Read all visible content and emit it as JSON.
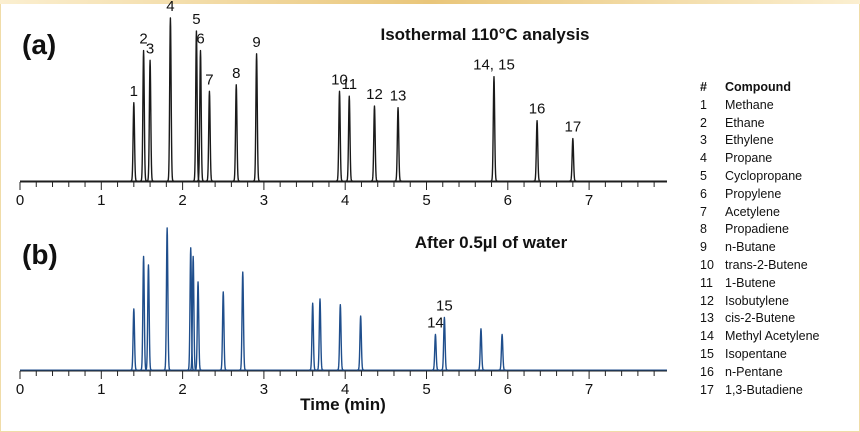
{
  "chart_data": [
    {
      "type": "line",
      "panel_label": "(a)",
      "title": "Isothermal 110°C analysis",
      "xlabel": "",
      "xlim": [
        0,
        8.0
      ],
      "xticks": [
        "0",
        "1",
        "2",
        "3",
        "4",
        "5",
        "6",
        "7"
      ],
      "line_color": "#1a1a1a",
      "peaks": [
        {
          "label": "1",
          "x": 1.4,
          "height": 0.48
        },
        {
          "label": "2",
          "x": 1.52,
          "height": 0.8
        },
        {
          "label": "3",
          "x": 1.6,
          "height": 0.74
        },
        {
          "label": "4",
          "x": 1.85,
          "height": 1.0
        },
        {
          "label": "5",
          "x": 2.17,
          "height": 0.92
        },
        {
          "label": "6",
          "x": 2.22,
          "height": 0.8
        },
        {
          "label": "7",
          "x": 2.33,
          "height": 0.55
        },
        {
          "label": "8",
          "x": 2.66,
          "height": 0.59
        },
        {
          "label": "9",
          "x": 2.91,
          "height": 0.78
        },
        {
          "label": "10",
          "x": 3.93,
          "height": 0.55
        },
        {
          "label": "11",
          "x": 4.05,
          "height": 0.52
        },
        {
          "label": "12",
          "x": 4.36,
          "height": 0.46
        },
        {
          "label": "13",
          "x": 4.65,
          "height": 0.45
        },
        {
          "label": "14, 15",
          "x": 5.83,
          "height": 0.64
        },
        {
          "label": "16",
          "x": 6.36,
          "height": 0.37
        },
        {
          "label": "17",
          "x": 6.8,
          "height": 0.26
        }
      ]
    },
    {
      "type": "line",
      "panel_label": "(b)",
      "title": "After 0.5µl of water",
      "xlabel": "Time (min)",
      "xlim": [
        0,
        8.0
      ],
      "xticks": [
        "0",
        "1",
        "2",
        "3",
        "4",
        "5",
        "6",
        "7"
      ],
      "line_color": "#1f4e8c",
      "peaks": [
        {
          "label": "",
          "x": 1.4,
          "height": 0.43
        },
        {
          "label": "",
          "x": 1.52,
          "height": 0.8
        },
        {
          "label": "",
          "x": 1.58,
          "height": 0.74
        },
        {
          "label": "",
          "x": 1.81,
          "height": 1.0
        },
        {
          "label": "",
          "x": 2.1,
          "height": 0.86
        },
        {
          "label": "",
          "x": 2.13,
          "height": 0.8
        },
        {
          "label": "",
          "x": 2.19,
          "height": 0.62
        },
        {
          "label": "",
          "x": 2.5,
          "height": 0.55
        },
        {
          "label": "",
          "x": 2.74,
          "height": 0.69
        },
        {
          "label": "",
          "x": 3.6,
          "height": 0.47
        },
        {
          "label": "",
          "x": 3.69,
          "height": 0.5
        },
        {
          "label": "",
          "x": 3.94,
          "height": 0.46
        },
        {
          "label": "",
          "x": 4.19,
          "height": 0.38
        },
        {
          "label": "14",
          "x": 5.11,
          "height": 0.25
        },
        {
          "label": "15",
          "x": 5.22,
          "height": 0.37
        },
        {
          "label": "",
          "x": 5.67,
          "height": 0.29
        },
        {
          "label": "",
          "x": 5.93,
          "height": 0.25
        }
      ]
    }
  ],
  "legend": {
    "header_num": "#",
    "header_label": "Compound",
    "items": [
      {
        "num": "1",
        "name": "Methane"
      },
      {
        "num": "2",
        "name": "Ethane"
      },
      {
        "num": "3",
        "name": "Ethylene"
      },
      {
        "num": "4",
        "name": "Propane"
      },
      {
        "num": "5",
        "name": "Cyclopropane"
      },
      {
        "num": "6",
        "name": "Propylene"
      },
      {
        "num": "7",
        "name": "Acetylene"
      },
      {
        "num": "8",
        "name": "Propadiene"
      },
      {
        "num": "9",
        "name": "n-Butane"
      },
      {
        "num": "10",
        "name": "trans-2-Butene"
      },
      {
        "num": "11",
        "name": "1-Butene"
      },
      {
        "num": "12",
        "name": "Isobutylene"
      },
      {
        "num": "13",
        "name": "cis-2-Butene"
      },
      {
        "num": "14",
        "name": "Methyl Acetylene"
      },
      {
        "num": "15",
        "name": "Isopentane"
      },
      {
        "num": "16",
        "name": "n-Pentane"
      },
      {
        "num": "17",
        "name": "1,3-Butadiene"
      }
    ]
  }
}
